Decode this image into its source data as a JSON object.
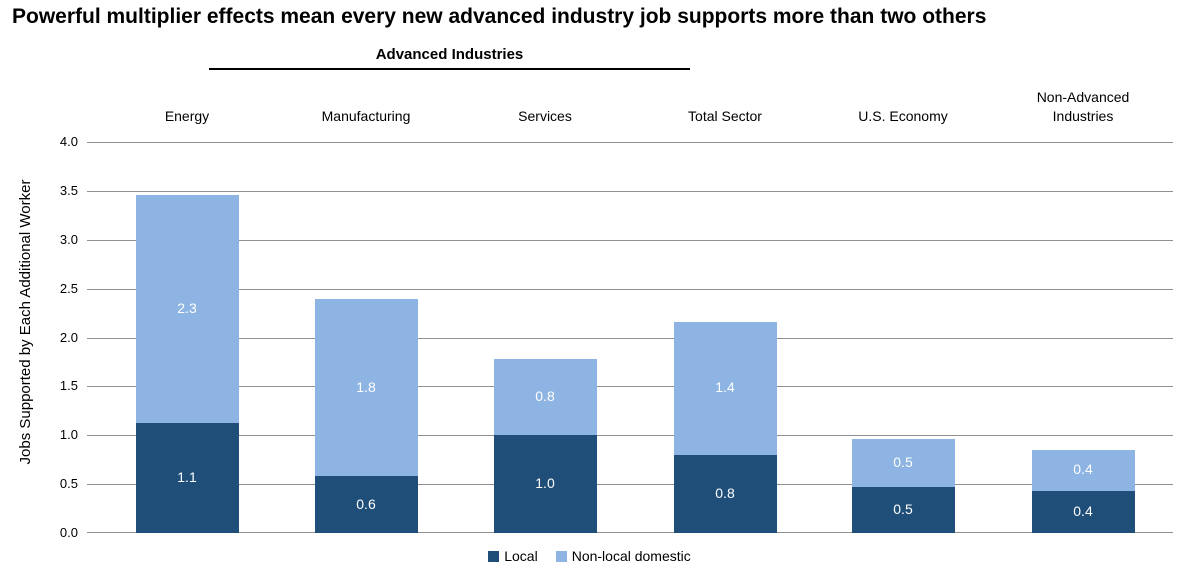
{
  "title": "Powerful multiplier effects mean every new advanced industry job supports more than two others",
  "chart_data": {
    "type": "bar",
    "stacked": true,
    "title": "Powerful multiplier effects mean every new advanced industry job supports more than two others",
    "group_label": {
      "text": "Advanced Industries",
      "covers": [
        "Energy",
        "Manufacturing",
        "Services",
        "Total Sector"
      ]
    },
    "ylabel": "Jobs Supported by Each Additional Worker",
    "categories": [
      "Energy",
      "Manufacturing",
      "Services",
      "Total Sector",
      "U.S. Economy",
      "Non-Advanced Industries"
    ],
    "series": [
      {
        "name": "Local",
        "color": "#1F4E79",
        "values": [
          1.13,
          0.58,
          1.0,
          0.8,
          0.47,
          0.43
        ],
        "labels": [
          "1.1",
          "0.6",
          "1.0",
          "0.8",
          "0.5",
          "0.4"
        ]
      },
      {
        "name": "Non-local domestic",
        "color": "#8DB4E2",
        "values": [
          2.33,
          1.81,
          0.78,
          1.36,
          0.49,
          0.42
        ],
        "labels": [
          "2.3",
          "1.8",
          "0.8",
          "1.4",
          "0.5",
          "0.4"
        ]
      }
    ],
    "ylim": [
      0.0,
      4.0
    ],
    "ytick_step": 0.5,
    "yticks": [
      "0.0",
      "0.5",
      "1.0",
      "1.5",
      "2.0",
      "2.5",
      "3.0",
      "3.5",
      "4.0"
    ],
    "grid": true,
    "gridline_color": "#909090",
    "value_label_color": "#FFFFFF",
    "legend_position": "bottom"
  }
}
